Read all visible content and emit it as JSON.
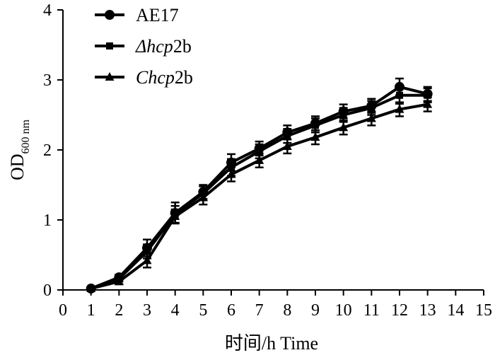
{
  "chart_data": {
    "type": "line",
    "xlabel": "时间/h Time",
    "ylabel_main": "OD",
    "ylabel_sub": "600 nm",
    "xlim": [
      0,
      15
    ],
    "ylim": [
      0,
      4
    ],
    "xticks": [
      "0",
      "1",
      "2",
      "3",
      "4",
      "5",
      "6",
      "7",
      "8",
      "9",
      "10",
      "11",
      "12",
      "13",
      "14",
      "15"
    ],
    "yticks": [
      "0",
      "1",
      "2",
      "3",
      "4"
    ],
    "grid": false,
    "legend_position": "top-left",
    "x": [
      1,
      2,
      3,
      4,
      5,
      6,
      7,
      8,
      9,
      10,
      11,
      12,
      13
    ],
    "series": [
      {
        "name": "AE17",
        "legend_parts": [
          {
            "text": "AE17",
            "italic": false
          }
        ],
        "marker": "circle",
        "values": [
          0.02,
          0.18,
          0.6,
          1.1,
          1.4,
          1.82,
          2.02,
          2.25,
          2.38,
          2.55,
          2.63,
          2.9,
          2.8
        ],
        "errors": [
          0.02,
          0.04,
          0.12,
          0.15,
          0.1,
          0.12,
          0.1,
          0.1,
          0.1,
          0.1,
          0.1,
          0.12,
          0.1
        ]
      },
      {
        "name": "Δhcp2b",
        "legend_parts": [
          {
            "text": "Δhcp",
            "italic": true
          },
          {
            "text": "2b",
            "italic": false
          }
        ],
        "marker": "square",
        "values": [
          0.02,
          0.16,
          0.55,
          1.08,
          1.38,
          1.75,
          1.98,
          2.2,
          2.35,
          2.5,
          2.6,
          2.78,
          2.78
        ],
        "errors": [
          0.02,
          0.04,
          0.1,
          0.12,
          0.1,
          0.12,
          0.1,
          0.1,
          0.1,
          0.1,
          0.1,
          0.12,
          0.1
        ]
      },
      {
        "name": "Chcp2b",
        "legend_parts": [
          {
            "text": "Chcp",
            "italic": true
          },
          {
            "text": "2b",
            "italic": false
          }
        ],
        "marker": "triangle",
        "values": [
          0.02,
          0.12,
          0.42,
          1.05,
          1.32,
          1.65,
          1.85,
          2.05,
          2.18,
          2.32,
          2.45,
          2.58,
          2.65
        ],
        "errors": [
          0.02,
          0.04,
          0.1,
          0.1,
          0.1,
          0.1,
          0.1,
          0.1,
          0.1,
          0.1,
          0.1,
          0.1,
          0.1
        ]
      }
    ]
  }
}
